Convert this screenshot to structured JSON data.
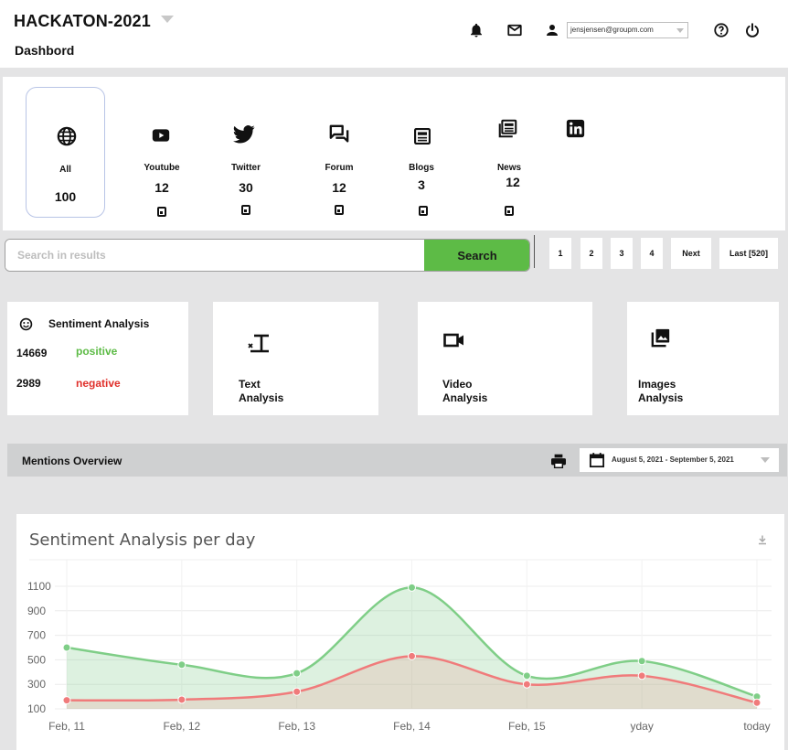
{
  "header": {
    "app_title": "HACKATON-2021",
    "page_subtitle": "Dashbord",
    "user_email": "jensjensen@groupm.com"
  },
  "sources": [
    {
      "name": "All",
      "count": "100",
      "icon": "globe-icon"
    },
    {
      "name": "Youtube",
      "count": "12",
      "icon": "youtube-icon"
    },
    {
      "name": "Twitter",
      "count": "30",
      "icon": "twitter-icon"
    },
    {
      "name": "Forum",
      "count": "12",
      "icon": "forum-icon"
    },
    {
      "name": "Blogs",
      "count": "3",
      "icon": "blog-icon"
    },
    {
      "name": "News",
      "count": "12",
      "icon": "news-icon"
    },
    {
      "name": "",
      "count": "",
      "icon": "linkedin-icon"
    }
  ],
  "search": {
    "placeholder": "Search in results",
    "button_label": "Search"
  },
  "pagination": [
    "1",
    "2",
    "3",
    "4",
    "Next",
    "Last [520]"
  ],
  "sentiment": {
    "title": "Sentiment Analysis",
    "positive_count": "14669",
    "positive_label": "positive",
    "negative_count": "2989",
    "negative_label": "negative"
  },
  "analysis_cards": [
    {
      "line1": "Text",
      "line2": "Analysis",
      "icon": "text-format-icon"
    },
    {
      "line1": "Video",
      "line2": "Analysis",
      "icon": "video-camera-icon"
    },
    {
      "line1": "Images",
      "line2": "Analysis",
      "icon": "image-library-icon"
    }
  ],
  "mentions": {
    "title": "Mentions Overview",
    "date_range": "August 5, 2021 - September 5, 2021"
  },
  "colors": {
    "search_green": "#5dbb46",
    "positive_green": "#5dbb46",
    "negative_red": "#e0302b",
    "positive_line": "#7fce87",
    "negative_line": "#f07b7b"
  },
  "chart_data": {
    "type": "area",
    "title": "Sentiment Analysis per day",
    "categories": [
      "Feb, 11",
      "Feb, 12",
      "Feb, 13",
      "Feb, 14",
      "Feb, 15",
      "yday",
      "today"
    ],
    "y_ticks": [
      "1100",
      "900",
      "700",
      "500",
      "300",
      "100"
    ],
    "ylim": [
      100,
      1100
    ],
    "series": [
      {
        "values": [
          600,
          460,
          390,
          1090,
          370,
          490,
          200
        ],
        "color": "#7fce87"
      },
      {
        "values": [
          170,
          175,
          240,
          530,
          300,
          370,
          150
        ],
        "color": "#f07b7b"
      }
    ],
    "grid": true,
    "legend": "none"
  }
}
